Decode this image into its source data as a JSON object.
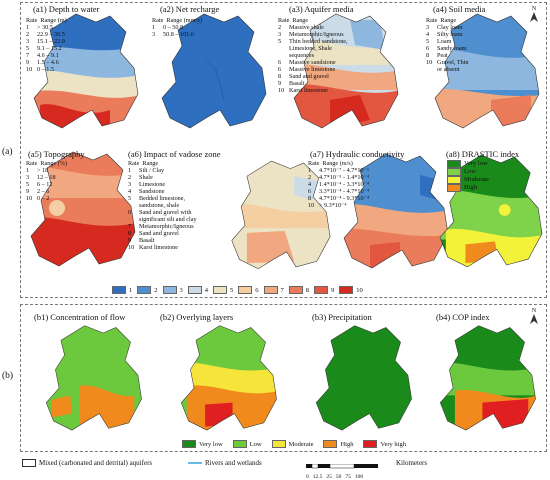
{
  "row_labels": {
    "a": "(a)",
    "b": "(b)"
  },
  "panels_a": [
    {
      "id": "a1",
      "title": "(a1) Depth to water",
      "header": [
        "Rate",
        "Range (m)"
      ],
      "rows": [
        [
          "1",
          "> 30.5"
        ],
        [
          "2",
          "22.9 – 30.5"
        ],
        [
          "3",
          "15.1 – 22.9"
        ],
        [
          "5",
          "9.1 – 15.2"
        ],
        [
          "7",
          "4.6 – 9.1"
        ],
        [
          "9",
          "1.5 – 4.6"
        ],
        [
          "10",
          "0 – 1.5"
        ]
      ]
    },
    {
      "id": "a2",
      "title": "(a2) Net recharge",
      "header": [
        "Rate",
        "Range (mm/y)"
      ],
      "rows": [
        [
          "1",
          "0 – 50.8"
        ],
        [
          "3",
          "50.8 – 101.6"
        ]
      ]
    },
    {
      "id": "a3",
      "title": "(a3) Aquifer media",
      "header": [
        "Rate",
        "Range"
      ],
      "rows": [
        [
          "2",
          "Massive shale"
        ],
        [
          "3",
          "Metamorphic/Igneous"
        ],
        [
          "5",
          "Thin bedded sandstone,\nLimestone, Shale\nsequences"
        ],
        [
          "6",
          "Massive sandstone"
        ],
        [
          "6",
          "Massive limestone"
        ],
        [
          "8",
          "Sand and gravel"
        ],
        [
          "9",
          "Basalt"
        ],
        [
          "10",
          "Karst limestone"
        ]
      ]
    },
    {
      "id": "a4",
      "title": "(a4) Soil media",
      "header": [
        "Rate",
        "Range"
      ],
      "rows": [
        [
          "3",
          "Clay loam"
        ],
        [
          "4",
          "Silty loam"
        ],
        [
          "5",
          "Loam"
        ],
        [
          "6",
          "Sandy loam"
        ],
        [
          "8",
          "Peat"
        ],
        [
          "10",
          "Gravel, Thin\nor absent"
        ]
      ]
    },
    {
      "id": "a5",
      "title": "(a5) Topography",
      "header": [
        "Rate",
        "Range (%)"
      ],
      "rows": [
        [
          "1",
          "> 18"
        ],
        [
          "3",
          "12 – 18"
        ],
        [
          "5",
          "6 – 12"
        ],
        [
          "9",
          "2 – 6"
        ],
        [
          "10",
          "0 – 2"
        ]
      ]
    },
    {
      "id": "a6",
      "title": "(a6) Impact of vadose zone",
      "header": [
        "Rate",
        "Range"
      ],
      "rows": [
        [
          "1",
          "Silt / Clay"
        ],
        [
          "2",
          "Shale"
        ],
        [
          "3",
          "Limestone"
        ],
        [
          "4",
          "Sandstone"
        ],
        [
          "5",
          "Bedded limestone,\nsandstone, shale"
        ],
        [
          "6",
          "Sand and gravel with\nsignificant silt and clay"
        ],
        [
          "7",
          "Metamorphic/Igneous"
        ],
        [
          "8",
          "Sand and gravel"
        ],
        [
          "9",
          "Basalt"
        ],
        [
          "10",
          "Karst limestone"
        ]
      ]
    },
    {
      "id": "a7",
      "title": "(a7) Hydraulic conductivity",
      "header": [
        "Rate",
        "Range (m/s)"
      ],
      "rows": [
        [
          "1",
          "4.7*10⁻⁷ - 4.7*10⁻⁵"
        ],
        [
          "2",
          "4.7*10⁻⁵ - 1.4*10⁻⁴"
        ],
        [
          "4",
          "1.4*10⁻⁴ - 3.3*10⁻⁴"
        ],
        [
          "6",
          "3.3*10⁻⁴ - 4.7*10⁻⁴"
        ],
        [
          "8",
          "4.7*10⁻⁴ - 9.3*10⁻⁴"
        ],
        [
          "10",
          "> 9.3*10⁻⁴"
        ]
      ]
    },
    {
      "id": "a8",
      "title": "(a8) DRASTIC index",
      "header": [
        "",
        ""
      ],
      "rows": []
    }
  ],
  "drastic_legend": [
    {
      "label": "Very low",
      "color": "#1a8a1a"
    },
    {
      "label": "Low",
      "color": "#7fd34a"
    },
    {
      "label": "Moderate",
      "color": "#f2f23a"
    },
    {
      "label": "High",
      "color": "#f08a1c"
    }
  ],
  "rating_legend": [
    {
      "label": "1",
      "color": "#2e6fbf"
    },
    {
      "label": "2",
      "color": "#4f8fcf"
    },
    {
      "label": "3",
      "color": "#8db7de"
    },
    {
      "label": "4",
      "color": "#cbdce8"
    },
    {
      "label": "5",
      "color": "#ece2c4"
    },
    {
      "label": "6",
      "color": "#f3cfa2"
    },
    {
      "label": "7",
      "color": "#f1a77f"
    },
    {
      "label": "8",
      "color": "#eb7c5b"
    },
    {
      "label": "9",
      "color": "#e3563f"
    },
    {
      "label": "10",
      "color": "#d6291f"
    }
  ],
  "panels_b": [
    {
      "id": "b1",
      "title": "(b1) Concentration of flow"
    },
    {
      "id": "b2",
      "title": "(b2) Overlying layers"
    },
    {
      "id": "b3",
      "title": "(b3) Precipitation"
    },
    {
      "id": "b4",
      "title": "(b4) COP index"
    }
  ],
  "cop_legend": [
    {
      "label": "Very low",
      "color": "#1a8a1a"
    },
    {
      "label": "Low",
      "color": "#6cc83c"
    },
    {
      "label": "Moderate",
      "color": "#f5e43a"
    },
    {
      "label": "High",
      "color": "#f08a1c"
    },
    {
      "label": "Very high",
      "color": "#e02020"
    }
  ],
  "bottom_legend": {
    "aquifer_label": "Mixed (carbonated and detrital) aquifers",
    "rivers_label": "Rivers and wetlands",
    "scale_ticks": [
      "0",
      "12.5",
      "25",
      "50",
      "75",
      "100"
    ],
    "scale_unit": "Kilometers"
  },
  "north": "N",
  "colors": {
    "river": "#3aa0e0",
    "outline": "#333333"
  }
}
